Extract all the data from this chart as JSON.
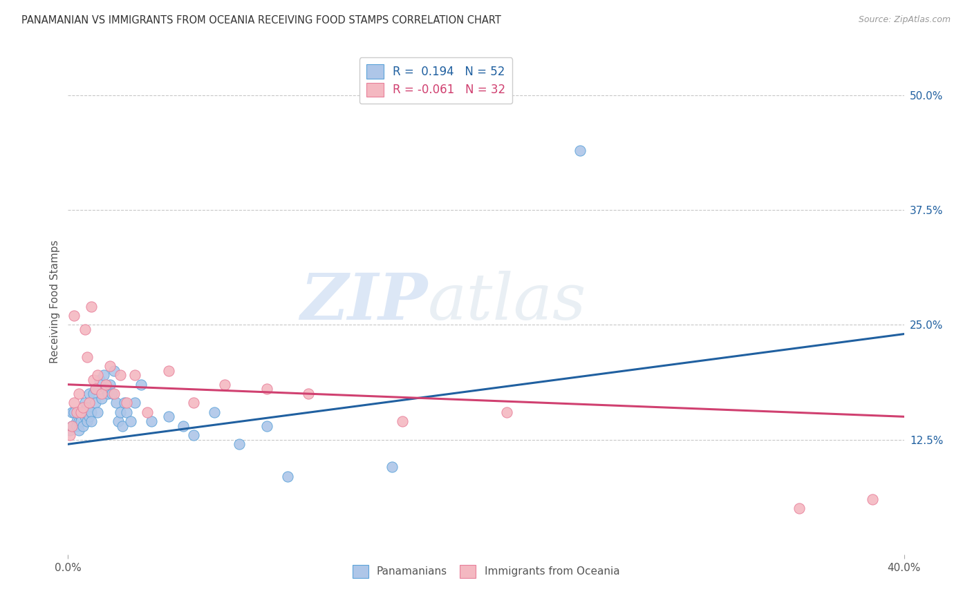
{
  "title": "PANAMANIAN VS IMMIGRANTS FROM OCEANIA RECEIVING FOOD STAMPS CORRELATION CHART",
  "source": "Source: ZipAtlas.com",
  "ylabel": "Receiving Food Stamps",
  "right_yticks": [
    "50.0%",
    "37.5%",
    "25.0%",
    "12.5%"
  ],
  "right_ytick_vals": [
    0.5,
    0.375,
    0.25,
    0.125
  ],
  "xlim": [
    0.0,
    0.4
  ],
  "ylim": [
    0.0,
    0.55
  ],
  "legend_color1": "#aec6e8",
  "legend_color2": "#f4b8c1",
  "blue_color": "#5ba3d9",
  "pink_color": "#e87f9a",
  "trendline_blue_color": "#2060a0",
  "trendline_pink_color": "#d04070",
  "watermark_zip": "ZIP",
  "watermark_atlas": "atlas",
  "background_color": "#ffffff",
  "grid_color": "#c8c8c8",
  "scatter_blue": {
    "x": [
      0.001,
      0.002,
      0.002,
      0.003,
      0.004,
      0.004,
      0.005,
      0.005,
      0.005,
      0.006,
      0.006,
      0.007,
      0.007,
      0.008,
      0.008,
      0.009,
      0.009,
      0.01,
      0.01,
      0.011,
      0.011,
      0.012,
      0.013,
      0.013,
      0.014,
      0.015,
      0.016,
      0.017,
      0.018,
      0.019,
      0.02,
      0.021,
      0.022,
      0.023,
      0.024,
      0.025,
      0.026,
      0.027,
      0.028,
      0.03,
      0.032,
      0.035,
      0.04,
      0.048,
      0.055,
      0.06,
      0.07,
      0.082,
      0.095,
      0.105,
      0.155,
      0.245
    ],
    "y": [
      0.135,
      0.155,
      0.14,
      0.155,
      0.145,
      0.14,
      0.155,
      0.145,
      0.135,
      0.15,
      0.145,
      0.14,
      0.155,
      0.165,
      0.15,
      0.16,
      0.145,
      0.15,
      0.175,
      0.155,
      0.145,
      0.175,
      0.165,
      0.18,
      0.155,
      0.19,
      0.17,
      0.195,
      0.18,
      0.175,
      0.185,
      0.175,
      0.2,
      0.165,
      0.145,
      0.155,
      0.14,
      0.165,
      0.155,
      0.145,
      0.165,
      0.185,
      0.145,
      0.15,
      0.14,
      0.13,
      0.155,
      0.12,
      0.14,
      0.085,
      0.095,
      0.44
    ]
  },
  "scatter_pink": {
    "x": [
      0.001,
      0.002,
      0.003,
      0.003,
      0.004,
      0.005,
      0.006,
      0.007,
      0.008,
      0.009,
      0.01,
      0.011,
      0.012,
      0.013,
      0.014,
      0.016,
      0.018,
      0.02,
      0.022,
      0.025,
      0.028,
      0.032,
      0.038,
      0.048,
      0.06,
      0.075,
      0.095,
      0.115,
      0.16,
      0.21,
      0.35,
      0.385
    ],
    "y": [
      0.13,
      0.14,
      0.165,
      0.26,
      0.155,
      0.175,
      0.155,
      0.16,
      0.245,
      0.215,
      0.165,
      0.27,
      0.19,
      0.18,
      0.195,
      0.175,
      0.185,
      0.205,
      0.175,
      0.195,
      0.165,
      0.195,
      0.155,
      0.2,
      0.165,
      0.185,
      0.18,
      0.175,
      0.145,
      0.155,
      0.05,
      0.06
    ]
  },
  "trendline_blue": {
    "x_start": 0.0,
    "x_end": 0.4,
    "y_start": 0.12,
    "y_end": 0.24
  },
  "trendline_pink": {
    "x_start": 0.0,
    "x_end": 0.4,
    "y_start": 0.185,
    "y_end": 0.15
  }
}
